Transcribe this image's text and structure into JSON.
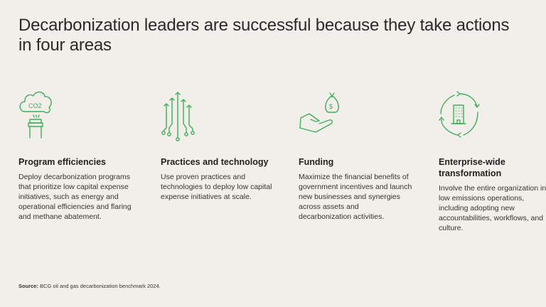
{
  "title": "Decarbonization leaders are successful because they take actions in four areas",
  "accent_color": "#3dae5a",
  "areas": [
    {
      "icon": "co2-smokestack-icon",
      "icon_text": "CO2",
      "heading": "Program efficiencies",
      "body": "Deploy decarbonization programs that prioritize low capital expense initiatives, such as energy and operational efficiencies and flaring and methane abatement."
    },
    {
      "icon": "circuit-arrows-icon",
      "heading": "Practices and technology",
      "body": "Use proven practices and technologies to deploy low capital expense initiatives at scale."
    },
    {
      "icon": "hand-money-bag-icon",
      "icon_text": "$",
      "heading": "Funding",
      "body": "Maximize the financial benefits of government incentives and launch new businesses and synergies across assets and decarbonization activities."
    },
    {
      "icon": "building-cycle-icon",
      "heading": "Enterprise-wide transformation",
      "body": "Involve the entire organization in low emissions operations, including adopting new accountabilities, workflows, and culture."
    }
  ],
  "source": {
    "label": "Source:",
    "text": "BCG oil and gas decarbonization benchmark 2024."
  }
}
